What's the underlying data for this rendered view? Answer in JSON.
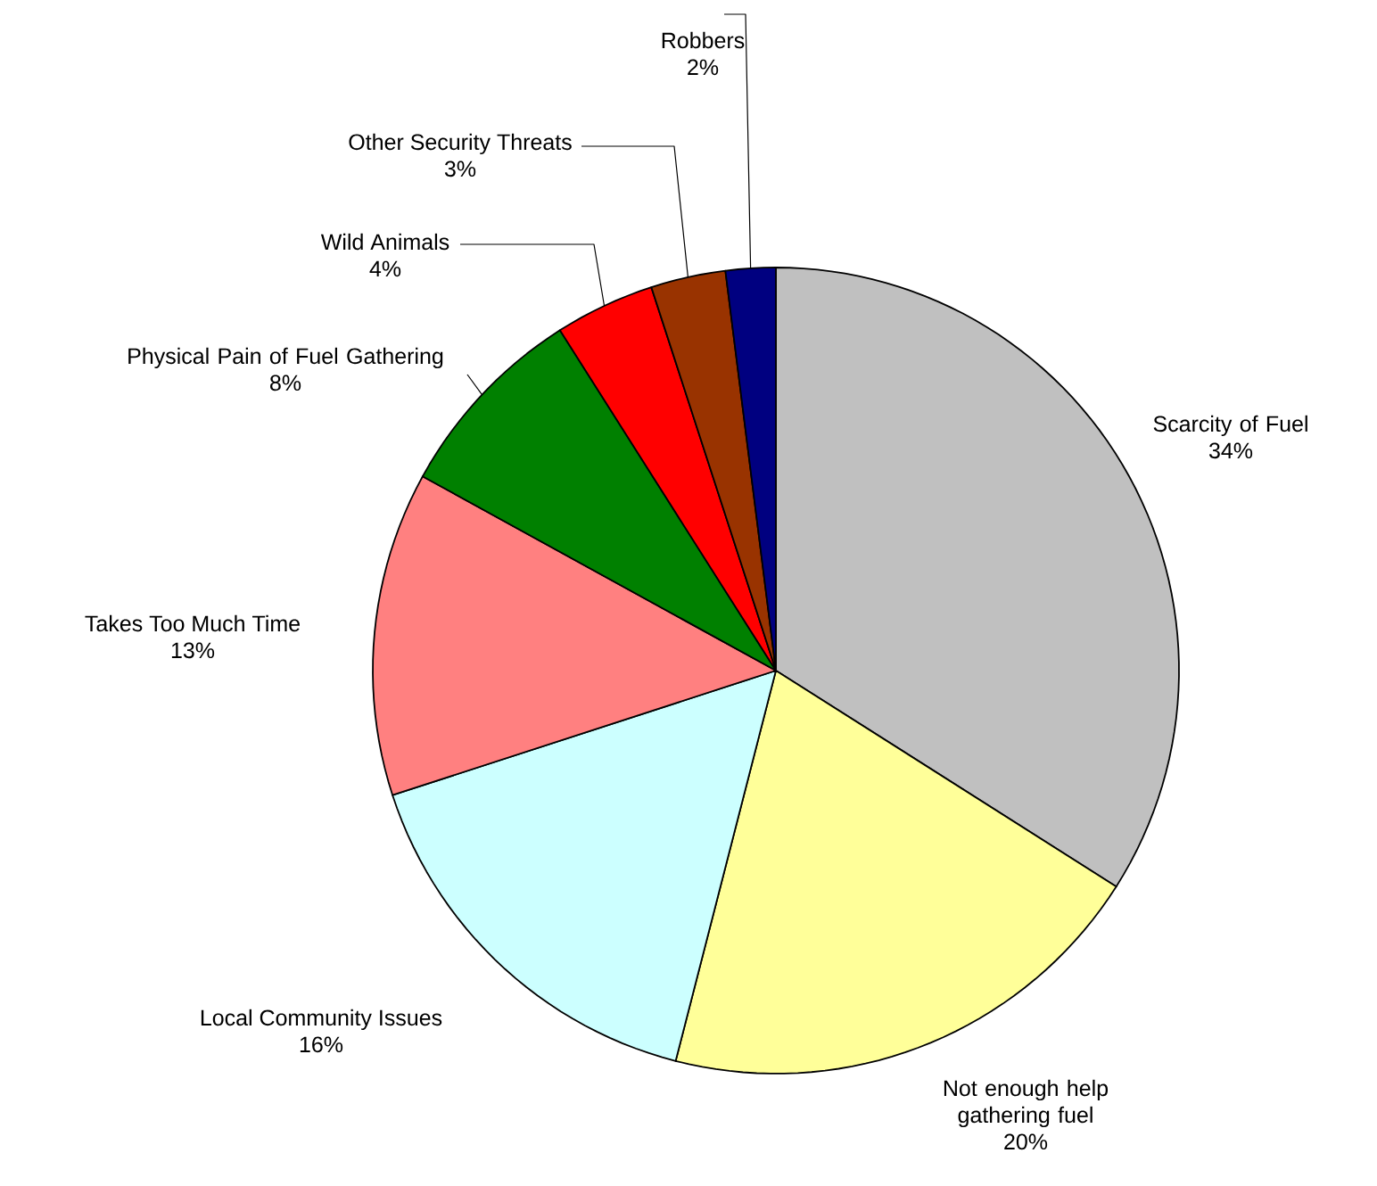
{
  "chart_data": {
    "type": "pie",
    "categories": [
      "Scarcity of Fuel",
      "Not enough help gathering fuel",
      "Local Community Issues",
      "Takes Too Much Time",
      "Physical Pain of Fuel Gathering",
      "Wild Animals",
      "Other Security Threats",
      "Robbers"
    ],
    "values": [
      34,
      20,
      16,
      13,
      8,
      4,
      3,
      2
    ],
    "value_labels": [
      "34%",
      "20%",
      "16%",
      "13%",
      "8%",
      "4%",
      "3%",
      "2%"
    ],
    "colors": [
      "#c0c0c0",
      "#ffff99",
      "#ccffff",
      "#ff8080",
      "#008000",
      "#ff0000",
      "#993300",
      "#000080"
    ]
  }
}
